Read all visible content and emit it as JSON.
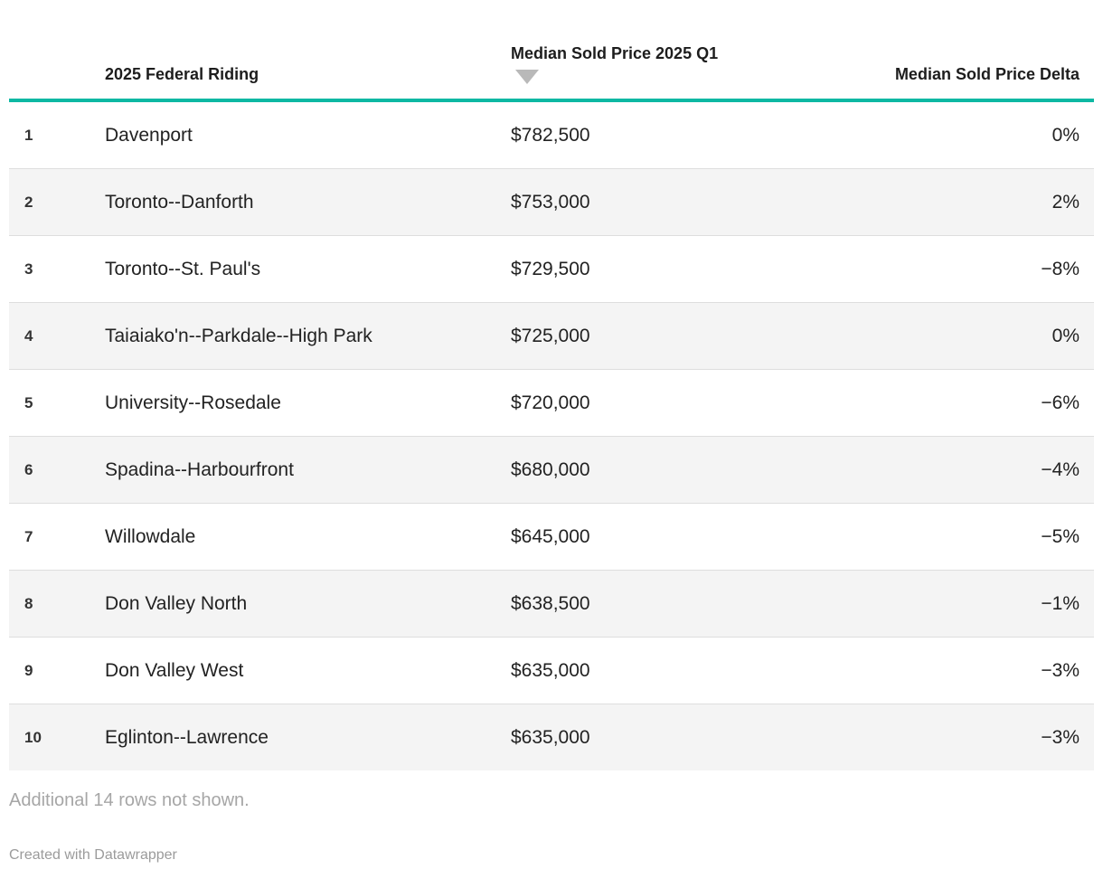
{
  "chart_data": {
    "type": "table",
    "columns": [
      "",
      "2025 Federal Riding",
      "Median Sold Price 2025 Q1",
      "Median Sold Price Delta"
    ],
    "sorted_by": "Median Sold Price 2025 Q1",
    "sort_direction": "descending",
    "rows": [
      {
        "rank": "1",
        "riding": "Davenport",
        "price": "$782,500",
        "price_value": 782500,
        "delta": "0%",
        "delta_value": 0
      },
      {
        "rank": "2",
        "riding": "Toronto--Danforth",
        "price": "$753,000",
        "price_value": 753000,
        "delta": "2%",
        "delta_value": 2
      },
      {
        "rank": "3",
        "riding": "Toronto--St. Paul's",
        "price": "$729,500",
        "price_value": 729500,
        "delta": "−8%",
        "delta_value": -8
      },
      {
        "rank": "4",
        "riding": "Taiaiako'n--Parkdale--High Park",
        "price": "$725,000",
        "price_value": 725000,
        "delta": "0%",
        "delta_value": 0
      },
      {
        "rank": "5",
        "riding": "University--Rosedale",
        "price": "$720,000",
        "price_value": 720000,
        "delta": "−6%",
        "delta_value": -6
      },
      {
        "rank": "6",
        "riding": "Spadina--Harbourfront",
        "price": "$680,000",
        "price_value": 680000,
        "delta": "−4%",
        "delta_value": -4
      },
      {
        "rank": "7",
        "riding": "Willowdale",
        "price": "$645,000",
        "price_value": 645000,
        "delta": "−5%",
        "delta_value": -5
      },
      {
        "rank": "8",
        "riding": "Don Valley North",
        "price": "$638,500",
        "price_value": 638500,
        "delta": "−1%",
        "delta_value": -1
      },
      {
        "rank": "9",
        "riding": "Don Valley West",
        "price": "$635,000",
        "price_value": 635000,
        "delta": "−3%",
        "delta_value": -3
      },
      {
        "rank": "10",
        "riding": "Eglinton--Lawrence",
        "price": "$635,000",
        "price_value": 635000,
        "delta": "−3%",
        "delta_value": -3
      }
    ],
    "footnote": "Additional 14 rows not shown."
  },
  "footer": {
    "credit": "Created with Datawrapper"
  },
  "icons": {
    "sort_icon": "triangle-down-icon"
  },
  "colors": {
    "accent_rule": "#0db8a3",
    "row_stripe": "#f4f4f4",
    "row_border": "#dedede",
    "body_text": "#222222",
    "muted_text": "#a6a6a6",
    "sort_arrow": "#b9b9b9"
  }
}
